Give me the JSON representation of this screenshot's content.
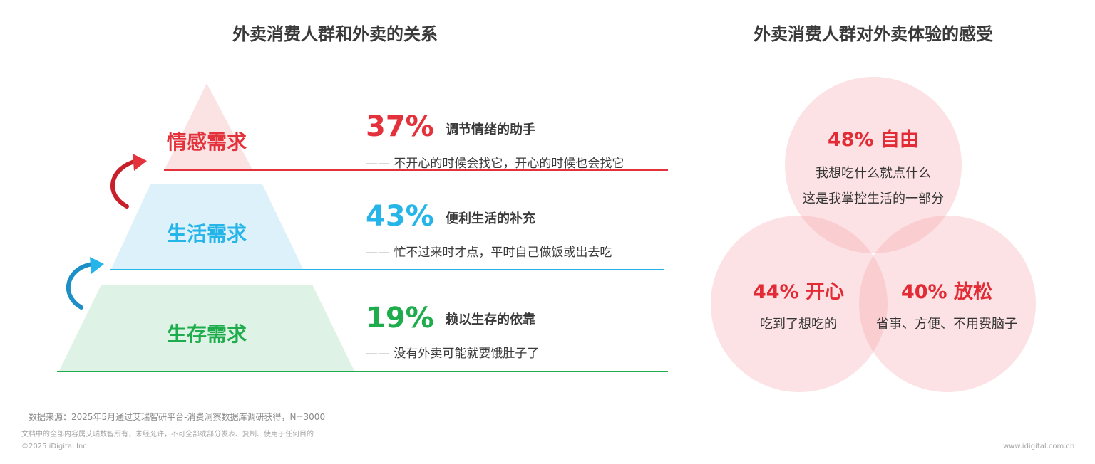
{
  "left_title": "外卖消费人群和外卖的关系",
  "right_title": "外卖消费人群对外卖体验的感受",
  "pyramid": [
    {
      "label": "情感需求",
      "percent": "37%",
      "headline": "调节情绪的助手",
      "quote": "—— 不开心的时候会找它，开心的时候也会找它",
      "color": "#e3323c",
      "fill": "#fbe3e4"
    },
    {
      "label": "生活需求",
      "percent": "43%",
      "headline": "便利生活的补充",
      "quote": "—— 忙不过来时才点，平时自己做饭或出去吃",
      "color": "#26b5e8",
      "fill": "#ddf1fb"
    },
    {
      "label": "生存需求",
      "percent": "19%",
      "headline": "赖以生存的依靠",
      "quote": "—— 没有外卖可能就要饿肚子了",
      "color": "#1fac4c",
      "fill": "#def3e5"
    }
  ],
  "venn": {
    "top": {
      "head": "48% 自由",
      "line1": "我想吃什么就点什么",
      "line2": "这是我掌控生活的一部分"
    },
    "left": {
      "head": "44% 开心",
      "line1": "吃到了想吃的"
    },
    "right": {
      "head": "40% 放松",
      "line1": "省事、方便、不用费脑子"
    },
    "circle_color": "#f4a0a4"
  },
  "footer": {
    "source": "数据来源：2025年5月通过艾瑞智研平台-消费洞察数据库调研获得，N=3000",
    "rights": "文档中的全部内容属艾瑞数智所有，未经允许，不可全部或部分发表、复制、使用于任何目的",
    "copyright": "©2025 iDigital Inc.",
    "website": "www.idigital.com.cn"
  },
  "icons": [
    "curved-arrow-red-icon",
    "curved-arrow-blue-icon"
  ]
}
